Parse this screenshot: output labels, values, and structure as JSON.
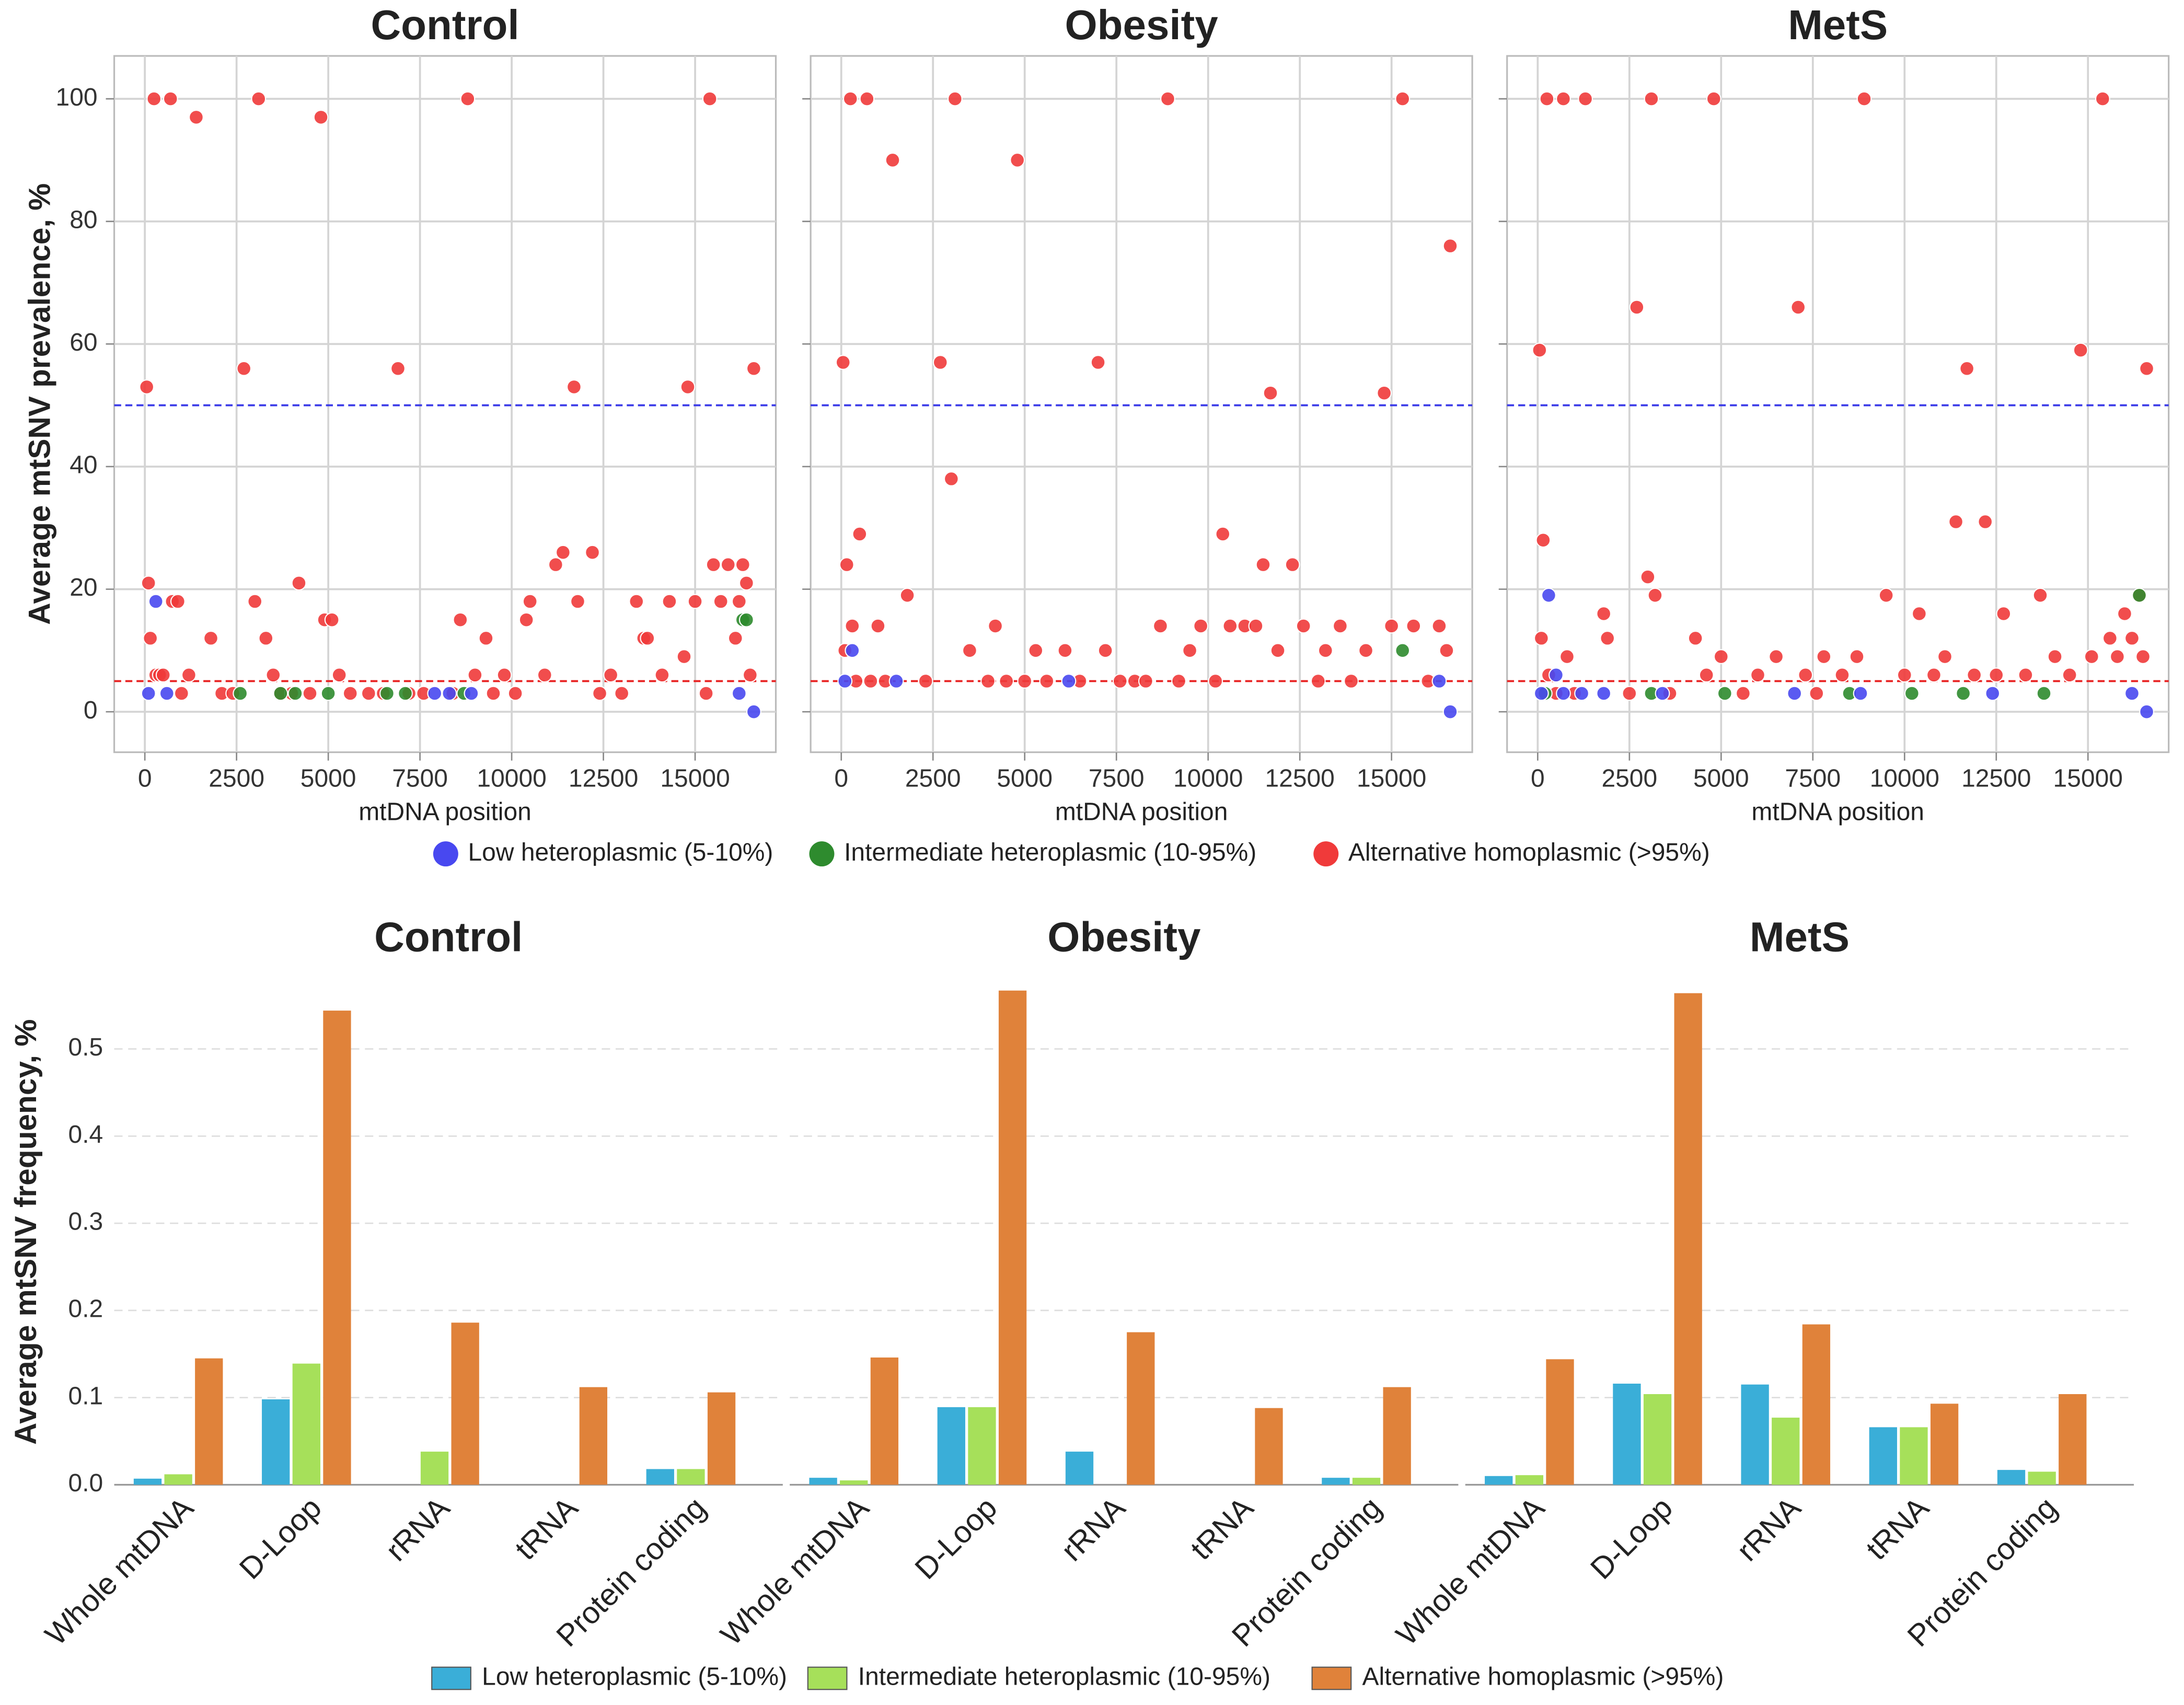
{
  "chart_data": [
    {
      "type": "scatter",
      "ylabel": "Average mtSNV prevalence, %",
      "xlabel": "mtDNA position",
      "xlim": [
        -835,
        17200
      ],
      "ylim": [
        -6.6,
        107
      ],
      "xticks": [
        0,
        2500,
        5000,
        7500,
        10000,
        12500,
        15000
      ],
      "yticks": [
        0,
        20,
        40,
        60,
        80,
        100
      ],
      "grid": true,
      "hlines": [
        {
          "value": 50,
          "color": "#3a3ae8"
        },
        {
          "value": 5,
          "color": "#e82020"
        }
      ],
      "legend": [
        {
          "name": "Low heteroplasmic (5-10%)",
          "color": "#4848f0"
        },
        {
          "name": "Intermediate heteroplasmic (10-95%)",
          "color": "#2e8b2e"
        },
        {
          "name": "Alternative homoplasmic (>95%)",
          "color": "#f03a3a"
        }
      ],
      "panels": [
        {
          "title": "Control",
          "series": [
            {
              "x": [
                100,
                300,
                600,
                7900,
                8300,
                8900,
                16200,
                16600
              ],
              "values": [
                3,
                18,
                3,
                3,
                3,
                3,
                3,
                0
              ]
            },
            {
              "x": [
                2600,
                3700,
                4100,
                5000,
                6600,
                7100,
                8700,
                16300,
                16400
              ],
              "values": [
                3,
                3,
                3,
                3,
                3,
                3,
                3,
                15,
                15
              ]
            },
            {
              "x": [
                50,
                100,
                150,
                250,
                300,
                400,
                500,
                700,
                750,
                900,
                1000,
                1200,
                1400,
                1800,
                2100,
                2400,
                2700,
                3000,
                3100,
                3300,
                3500,
                3700,
                4000,
                4200,
                4500,
                4800,
                4900,
                5100,
                5300,
                5600,
                6100,
                6500,
                6900,
                7200,
                7600,
                8400,
                8600,
                8800,
                9000,
                9300,
                9500,
                9800,
                10100,
                10400,
                10500,
                10900,
                11200,
                11400,
                11700,
                11800,
                12200,
                12400,
                12700,
                13000,
                13400,
                13600,
                13700,
                14100,
                14300,
                14700,
                14800,
                15000,
                15300,
                15400,
                15500,
                15700,
                15900,
                16100,
                16200,
                16300,
                16400,
                16500,
                16600
              ],
              "values": [
                53,
                21,
                12,
                100,
                6,
                6,
                6,
                100,
                18,
                18,
                3,
                6,
                97,
                12,
                3,
                3,
                56,
                18,
                100,
                12,
                6,
                3,
                3,
                21,
                3,
                97,
                15,
                15,
                6,
                3,
                3,
                3,
                56,
                3,
                3,
                3,
                15,
                100,
                6,
                12,
                3,
                6,
                3,
                15,
                18,
                6,
                24,
                26,
                53,
                18,
                26,
                3,
                6,
                3,
                18,
                12,
                12,
                6,
                18,
                9,
                53,
                18,
                3,
                100,
                24,
                18,
                24,
                12,
                18,
                24,
                21,
                6,
                56
              ]
            }
          ]
        },
        {
          "title": "Obesity",
          "series": [
            {
              "x": [
                100,
                300,
                1500,
                6200,
                16300,
                16600
              ],
              "values": [
                5,
                10,
                5,
                5,
                5,
                0
              ]
            },
            {
              "x": [
                15300
              ],
              "values": [
                10
              ]
            },
            {
              "x": [
                50,
                100,
                150,
                250,
                300,
                400,
                500,
                700,
                800,
                1000,
                1200,
                1400,
                1800,
                2300,
                2700,
                3000,
                3100,
                3500,
                4000,
                4200,
                4500,
                4800,
                5000,
                5300,
                5600,
                6100,
                6500,
                7000,
                7200,
                7600,
                8000,
                8300,
                8700,
                8900,
                9200,
                9500,
                9800,
                10200,
                10400,
                10600,
                11000,
                11300,
                11500,
                11700,
                11900,
                12300,
                12600,
                13000,
                13200,
                13600,
                13900,
                14300,
                14800,
                15000,
                15300,
                15600,
                16000,
                16300,
                16500,
                16600
              ],
              "values": [
                57,
                10,
                24,
                100,
                14,
                5,
                29,
                100,
                5,
                14,
                5,
                90,
                19,
                5,
                57,
                38,
                100,
                10,
                5,
                14,
                5,
                90,
                5,
                10,
                5,
                10,
                5,
                57,
                10,
                5,
                5,
                5,
                14,
                100,
                5,
                10,
                14,
                5,
                29,
                14,
                14,
                14,
                24,
                52,
                10,
                24,
                14,
                5,
                10,
                14,
                5,
                10,
                52,
                14,
                100,
                14,
                5,
                14,
                10,
                76
              ]
            }
          ]
        },
        {
          "title": "MetS",
          "series": [
            {
              "x": [
                100,
                300,
                500,
                700,
                1200,
                1800,
                3400,
                7000,
                8800,
                12400,
                16200,
                16600
              ],
              "values": [
                3,
                19,
                6,
                3,
                3,
                3,
                3,
                3,
                3,
                3,
                3,
                0
              ]
            },
            {
              "x": [
                200,
                3100,
                5100,
                8500,
                10200,
                11600,
                13800,
                16400
              ],
              "values": [
                3,
                3,
                3,
                3,
                3,
                3,
                3,
                19
              ]
            },
            {
              "x": [
                50,
                100,
                150,
                250,
                300,
                500,
                700,
                800,
                1000,
                1300,
                1800,
                1900,
                2500,
                2700,
                3000,
                3100,
                3200,
                3600,
                4300,
                4600,
                4800,
                5000,
                5600,
                6000,
                6500,
                7100,
                7300,
                7600,
                7800,
                8300,
                8700,
                8900,
                9500,
                10000,
                10400,
                10800,
                11100,
                11400,
                11700,
                11900,
                12200,
                12500,
                12700,
                13300,
                13700,
                14100,
                14500,
                14800,
                15100,
                15400,
                15600,
                15800,
                16000,
                16200,
                16400,
                16500,
                16600
              ],
              "values": [
                59,
                12,
                28,
                100,
                6,
                3,
                100,
                9,
                3,
                100,
                16,
                12,
                3,
                66,
                22,
                100,
                19,
                3,
                12,
                6,
                100,
                9,
                3,
                6,
                9,
                66,
                6,
                3,
                9,
                6,
                9,
                100,
                19,
                6,
                16,
                6,
                9,
                31,
                56,
                6,
                31,
                6,
                16,
                6,
                19,
                9,
                6,
                59,
                9,
                100,
                12,
                9,
                16,
                12,
                19,
                9,
                56
              ]
            }
          ]
        }
      ]
    },
    {
      "type": "bar",
      "ylabel": "Average mtSNV frequency, %",
      "categories": [
        "Whole mtDNA",
        "D-Loop",
        "rRNA",
        "tRNA",
        "Protein coding"
      ],
      "ylim": [
        0,
        0.58
      ],
      "yticks": [
        {
          "value": 0,
          "label": "0.0"
        },
        0.1,
        0.2,
        0.3,
        0.4,
        0.5
      ],
      "grid": true,
      "legend": [
        {
          "name": "Low heteroplasmic (5-10%)",
          "color": "#3aaed8"
        },
        {
          "name": "Intermediate heteroplasmic (10-95%)",
          "color": "#a6e05a"
        },
        {
          "name": "Alternative homoplasmic (>95%)",
          "color": "#e0823a"
        }
      ],
      "panels": [
        {
          "title": "Control",
          "series": [
            {
              "values": [
                0.007,
                0.098,
                0,
                0,
                0.018
              ]
            },
            {
              "values": [
                0.012,
                0.139,
                0.038,
                0,
                0.018
              ]
            },
            {
              "values": [
                0.145,
                0.544,
                0.186,
                0.112,
                0.106
              ]
            }
          ]
        },
        {
          "title": "Obesity",
          "series": [
            {
              "values": [
                0.008,
                0.089,
                0.038,
                0,
                0.008
              ]
            },
            {
              "values": [
                0.005,
                0.089,
                0,
                0,
                0.008
              ]
            },
            {
              "values": [
                0.146,
                0.567,
                0.175,
                0.088,
                0.112
              ]
            }
          ]
        },
        {
          "title": "MetS",
          "series": [
            {
              "values": [
                0.01,
                0.116,
                0.115,
                0.066,
                0.017
              ]
            },
            {
              "values": [
                0.011,
                0.104,
                0.077,
                0.066,
                0.015
              ]
            },
            {
              "values": [
                0.144,
                0.564,
                0.184,
                0.093,
                0.104
              ]
            }
          ]
        }
      ]
    }
  ]
}
